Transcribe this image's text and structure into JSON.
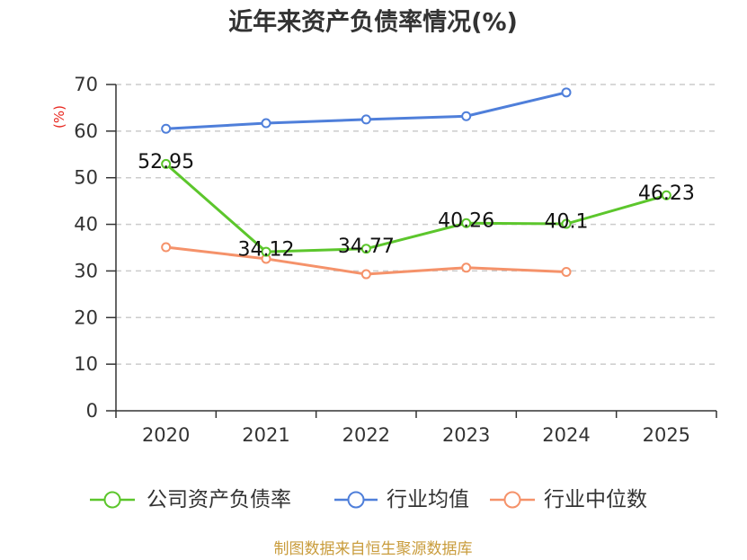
{
  "chart_data": {
    "type": "line",
    "title": "近年来资产负债率情况(%)",
    "xlabel": "",
    "ylabel": "(%)",
    "ylim": [
      0,
      70
    ],
    "yticks": [
      0,
      10,
      20,
      30,
      40,
      50,
      60,
      70
    ],
    "categories": [
      "2020",
      "2021",
      "2022",
      "2023",
      "2024",
      "2025"
    ],
    "grid": true,
    "legend": "bottom",
    "series": [
      {
        "name": "公司资产负债率",
        "color": "#5cc62c",
        "values": [
          52.95,
          34.12,
          34.77,
          40.26,
          40.1,
          46.23
        ],
        "show_labels": true
      },
      {
        "name": "行业均值",
        "color": "#4f7fda",
        "values": [
          60.5,
          61.7,
          62.5,
          63.2,
          68.3,
          null
        ],
        "show_labels": false
      },
      {
        "name": "行业中位数",
        "color": "#f5926a",
        "values": [
          35.1,
          32.6,
          29.3,
          30.7,
          29.8,
          null
        ],
        "show_labels": false
      }
    ]
  },
  "source": "制图数据来自恒生聚源数据库",
  "colors": {
    "axis": "#333333",
    "grid": "#cccccc",
    "source": "#c99c3c",
    "ylabel": "#e8261e"
  }
}
